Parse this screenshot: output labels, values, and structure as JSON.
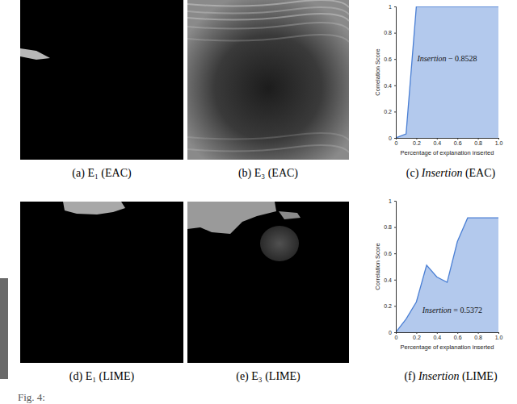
{
  "captions": [
    "(a) E₁ (EAC)",
    "(b) E₃ (EAC)",
    "(c) Insertion (EAC)",
    "(d) E₁ (LIME)",
    "(e) E₃ (LIME)",
    "(f) Insertion (LIME)"
  ],
  "figure_caption": "Fig. 4:",
  "chart_data": [
    {
      "type": "area",
      "x_label": "Percentage of explanation inserted",
      "y_label": "Correlation Score",
      "annotation": "Insertion − 0.8528",
      "x": [
        0,
        0.1,
        0.2,
        1
      ],
      "values": [
        0,
        0.03,
        1,
        1
      ],
      "color": "#4a7fd4",
      "xlim": [
        0,
        1
      ],
      "ylim": [
        0,
        1
      ],
      "xticks": [
        0,
        0.2,
        0.4,
        0.6,
        0.8,
        {
          "value": 1,
          "label": "1.0"
        }
      ],
      "yticks": [
        0,
        0.2,
        0.4,
        0.6,
        0.8,
        1
      ],
      "grid": false
    },
    {
      "type": "area",
      "x_label": "Percentage of explanation inserted",
      "y_label": "Correlation Score",
      "annotation": "Insertion = 0.5372",
      "x": [
        0,
        0.1,
        0.2,
        0.3,
        0.4,
        0.5,
        0.6,
        0.7,
        0.8,
        0.9,
        1
      ],
      "values": [
        0,
        0.1,
        0.23,
        0.51,
        0.42,
        0.38,
        0.69,
        0.87,
        0.87,
        0.87,
        0.87
      ],
      "color": "#4a7fd4",
      "xlim": [
        0,
        1
      ],
      "ylim": [
        0,
        1
      ],
      "xticks": [
        0,
        0.2,
        0.4,
        0.6,
        0.8,
        {
          "value": 1,
          "label": "1.0"
        }
      ],
      "yticks": [
        0,
        0.2,
        0.4,
        0.6,
        0.8,
        1
      ],
      "grid": false
    }
  ]
}
